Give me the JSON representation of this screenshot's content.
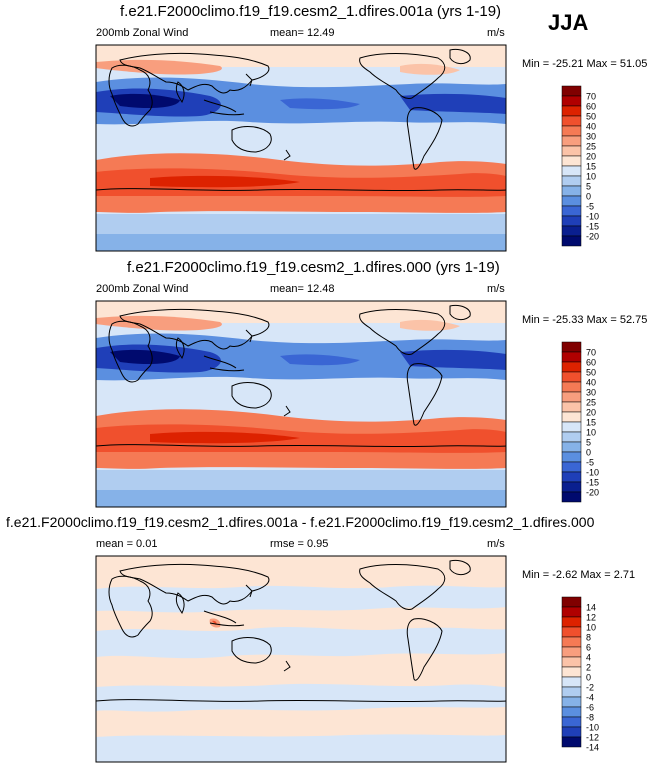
{
  "season": "JJA",
  "panels": [
    {
      "title": "f.e21.F2000climo.f19_f19.cesm2_1.dfires.001a (yrs 1-19)",
      "left_label": "200mb Zonal Wind",
      "center_label": "mean=  12.49",
      "units": "m/s",
      "minmax": "Min = -25.21 Max =  51.05",
      "colorbar": [
        "70",
        "60",
        "50",
        "40",
        "30",
        "25",
        "20",
        "15",
        "10",
        "5",
        "0",
        "-5",
        "-10",
        "-15",
        "-20"
      ]
    },
    {
      "title": "f.e21.F2000climo.f19_f19.cesm2_1.dfires.000 (yrs 1-19)",
      "left_label": "200mb Zonal Wind",
      "center_label": "mean=  12.48",
      "units": "m/s",
      "minmax": "Min = -25.33 Max =  52.75",
      "colorbar": [
        "70",
        "60",
        "50",
        "40",
        "30",
        "25",
        "20",
        "15",
        "10",
        "5",
        "0",
        "-5",
        "-10",
        "-15",
        "-20"
      ]
    },
    {
      "title": "f.e21.F2000climo.f19_f19.cesm2_1.dfires.001a - f.e21.F2000climo.f19_f19.cesm2_1.dfires.000",
      "left_label": "mean =   0.01",
      "center_label": "rmse =   0.95",
      "units": "m/s",
      "minmax": "Min =  -2.62 Max =   2.71",
      "colorbar": [
        "14",
        "12",
        "10",
        "8",
        "6",
        "4",
        "2",
        "0",
        "-2",
        "-4",
        "-6",
        "-8",
        "-10",
        "-12",
        "-14"
      ]
    }
  ],
  "colors": {
    "wind": [
      "#800000",
      "#b00000",
      "#dd2200",
      "#f0502d",
      "#f57a55",
      "#f89e7e",
      "#fbc3a8",
      "#fde5d4",
      "#d7e6f8",
      "#b0cdf0",
      "#86b2e8",
      "#5b8fe0",
      "#3a66d4",
      "#1f3fb8",
      "#0a1f8f",
      "#000a6e"
    ],
    "diff": [
      "#800000",
      "#b00000",
      "#dd2200",
      "#f0502d",
      "#f57a55",
      "#f89e7e",
      "#fbc3a8",
      "#fde5d4",
      "#d7e6f8",
      "#b0cdf0",
      "#86b2e8",
      "#5b8fe0",
      "#3a66d4",
      "#1f3fb8",
      "#000a6e"
    ]
  }
}
